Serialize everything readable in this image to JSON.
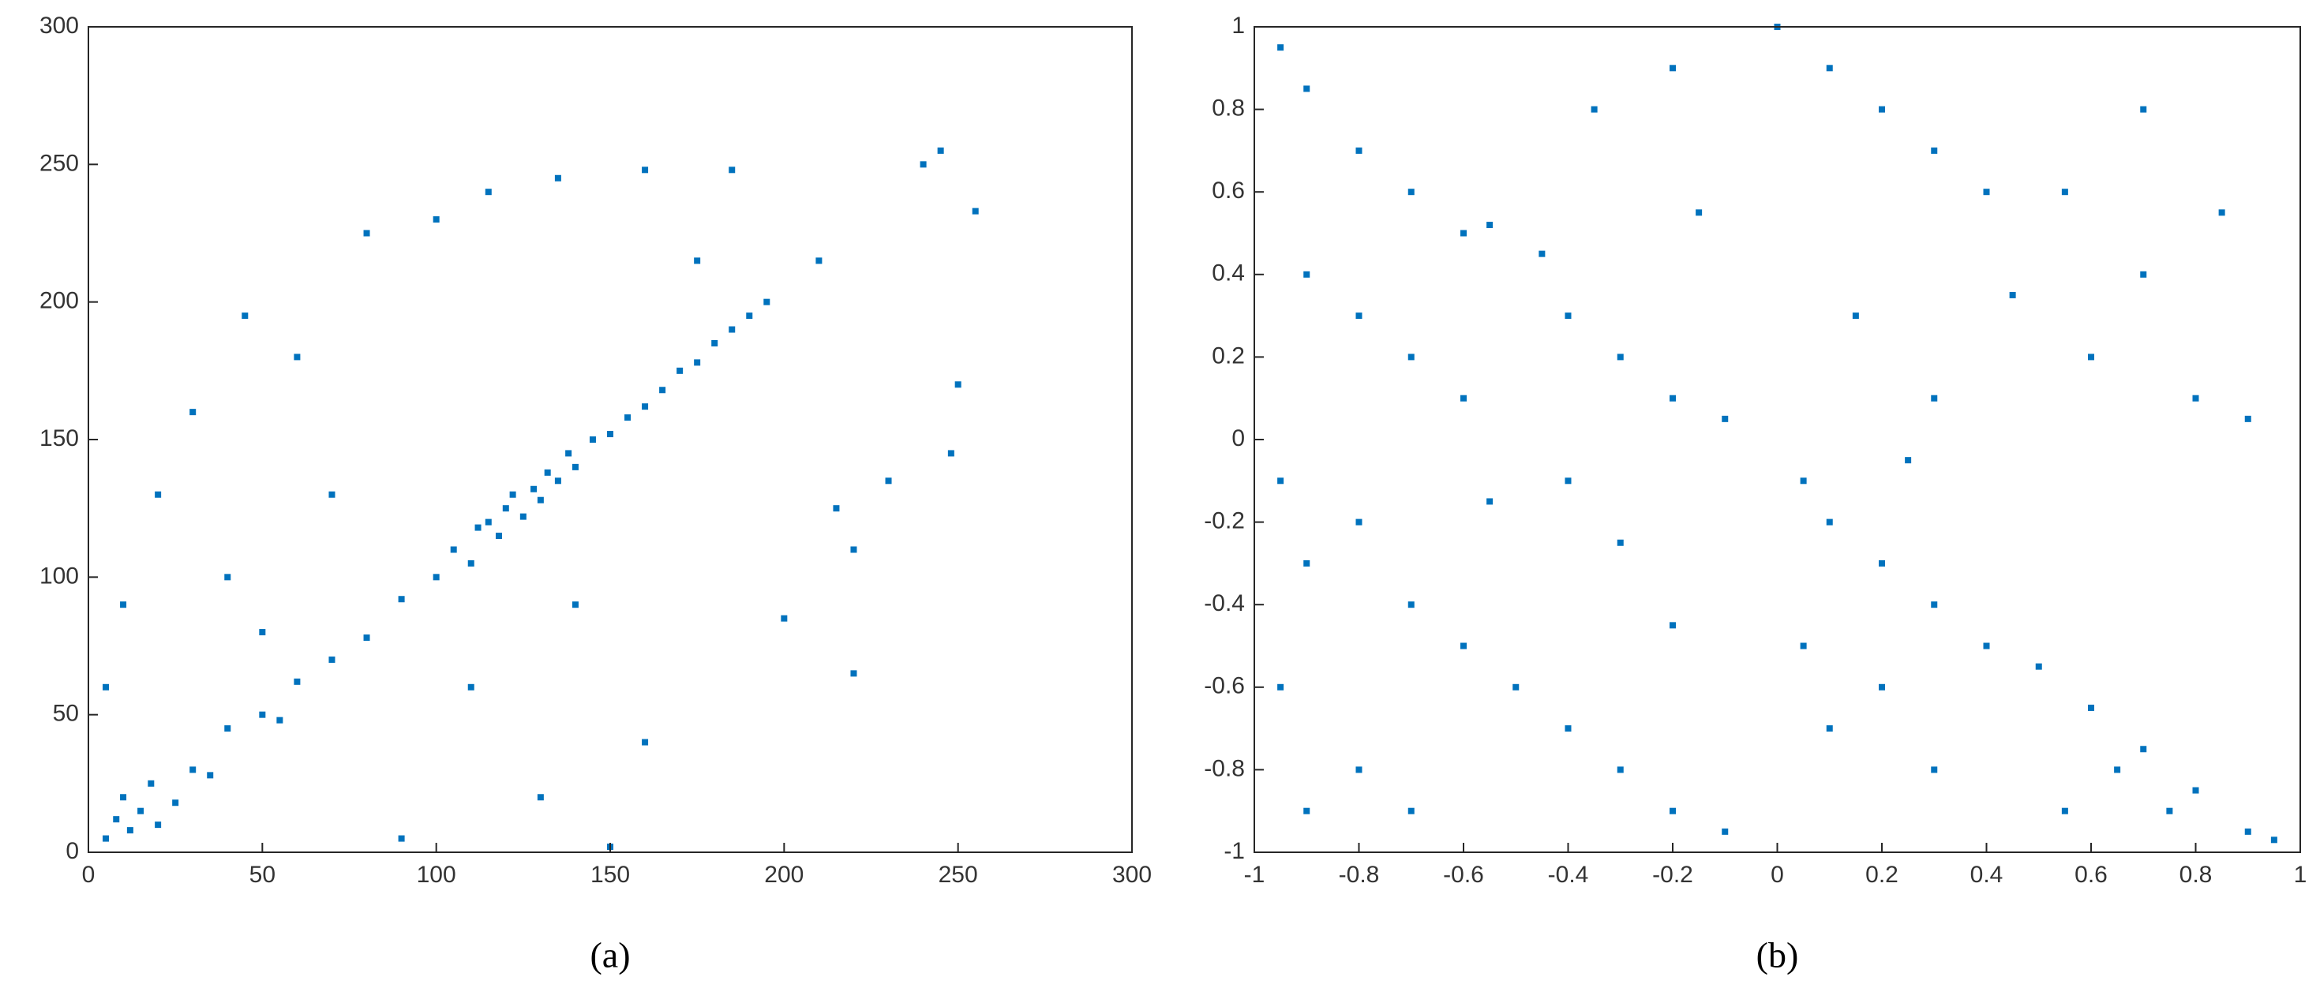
{
  "chart_data": [
    {
      "type": "scatter",
      "caption": "(a)",
      "color": "#0072bd",
      "xlim": [
        0,
        300
      ],
      "ylim": [
        0,
        300
      ],
      "xticks": [
        0,
        50,
        100,
        150,
        200,
        250,
        300
      ],
      "yticks": [
        0,
        50,
        100,
        150,
        200,
        250,
        300
      ],
      "x": [
        5,
        8,
        12,
        15,
        10,
        20,
        18,
        25,
        30,
        35,
        40,
        50,
        55,
        60,
        70,
        80,
        90,
        100,
        105,
        110,
        112,
        115,
        118,
        120,
        122,
        125,
        128,
        130,
        132,
        135,
        138,
        140,
        145,
        150,
        155,
        160,
        165,
        170,
        175,
        180,
        185,
        190,
        195,
        30,
        45,
        60,
        80,
        100,
        115,
        135,
        160,
        185,
        240,
        245,
        255,
        250,
        248,
        215,
        220,
        200,
        220,
        160,
        130,
        90,
        150,
        50,
        20,
        10,
        5,
        40,
        70,
        175,
        210,
        230,
        110,
        140
      ],
      "values": [
        5,
        12,
        8,
        15,
        20,
        10,
        25,
        18,
        30,
        28,
        45,
        50,
        48,
        62,
        70,
        78,
        92,
        100,
        110,
        105,
        118,
        120,
        115,
        125,
        130,
        122,
        132,
        128,
        138,
        135,
        145,
        140,
        150,
        152,
        158,
        162,
        168,
        175,
        178,
        185,
        190,
        195,
        200,
        160,
        195,
        180,
        225,
        230,
        240,
        245,
        248,
        248,
        250,
        255,
        233,
        170,
        145,
        125,
        110,
        85,
        65,
        40,
        20,
        5,
        2,
        80,
        130,
        90,
        60,
        100,
        130,
        215,
        215,
        135,
        60,
        90
      ]
    },
    {
      "type": "scatter",
      "caption": "(b)",
      "color": "#0072bd",
      "xlim": [
        -1,
        1
      ],
      "ylim": [
        -1,
        1
      ],
      "xticks": [
        -1,
        -0.8,
        -0.6,
        -0.4,
        -0.2,
        0,
        0.2,
        0.4,
        0.6,
        0.8,
        1
      ],
      "yticks": [
        -1,
        -0.8,
        -0.6,
        -0.4,
        -0.2,
        0,
        0.2,
        0.4,
        0.6,
        0.8,
        1
      ],
      "x": [
        -0.95,
        -0.9,
        -0.8,
        -0.7,
        -0.6,
        -0.55,
        -0.9,
        -0.8,
        -0.7,
        -0.6,
        -0.4,
        -0.3,
        -0.2,
        -0.1,
        -0.45,
        -0.95,
        -0.9,
        -0.8,
        -0.7,
        -0.6,
        -0.5,
        -0.4,
        -0.3,
        -0.2,
        -0.1,
        -0.9,
        -0.8,
        -0.7,
        -0.95,
        0.05,
        0.1,
        0.2,
        0.3,
        0.4,
        0.05,
        0.1,
        0.2,
        0.3,
        0.5,
        0.6,
        0.7,
        0.8,
        0.9,
        0.55,
        0.65,
        0.75,
        0.95,
        0.6,
        0.7,
        0.8,
        0.9,
        0.55,
        0.7,
        0.85,
        0.2,
        0.3,
        0.1,
        0.4,
        -0.35,
        -0.2,
        -0.15,
        -0.4,
        -0.3,
        -0.2,
        0.15,
        0.3,
        0.45,
        0,
        -0.55,
        0.25
      ],
      "values": [
        0.95,
        0.85,
        0.7,
        0.6,
        0.5,
        0.52,
        0.4,
        0.3,
        0.2,
        0.1,
        0.3,
        0.2,
        0.1,
        0.05,
        0.45,
        -0.1,
        -0.3,
        -0.2,
        -0.4,
        -0.5,
        -0.6,
        -0.7,
        -0.8,
        -0.9,
        -0.95,
        -0.9,
        -0.8,
        -0.9,
        -0.6,
        -0.1,
        -0.2,
        -0.3,
        -0.4,
        -0.5,
        -0.5,
        -0.7,
        -0.6,
        -0.8,
        -0.55,
        -0.65,
        -0.75,
        -0.85,
        -0.95,
        -0.9,
        -0.8,
        -0.9,
        -0.97,
        0.2,
        0.4,
        0.1,
        0.05,
        0.6,
        0.8,
        0.55,
        0.8,
        0.7,
        0.9,
        0.6,
        0.8,
        0.9,
        0.55,
        -0.1,
        -0.25,
        -0.45,
        0.3,
        0.1,
        0.35,
        1,
        -0.15,
        -0.05
      ]
    }
  ]
}
